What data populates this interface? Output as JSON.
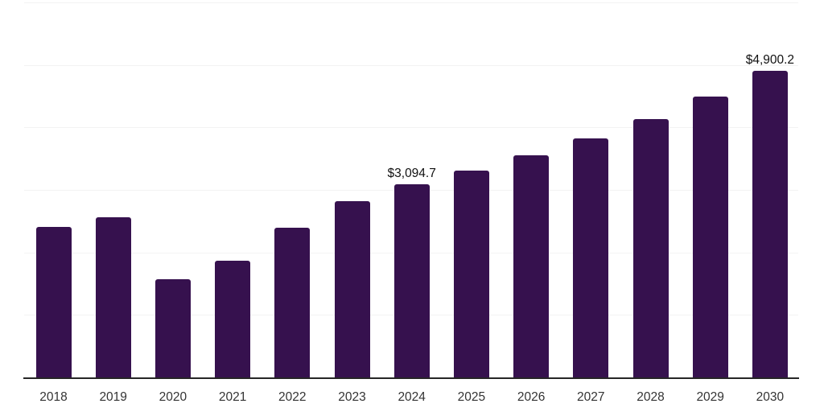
{
  "chart_data": {
    "type": "bar",
    "title": "",
    "xlabel": "",
    "ylabel": "",
    "categories": [
      "2018",
      "2019",
      "2020",
      "2021",
      "2022",
      "2023",
      "2024",
      "2025",
      "2026",
      "2027",
      "2028",
      "2029",
      "2030"
    ],
    "values": [
      2410,
      2565,
      1565,
      1870,
      2395,
      2815,
      3094.7,
      3310,
      3560,
      3830,
      4130,
      4490,
      4900.2
    ],
    "value_labels": [
      {
        "index": 6,
        "text": "$3,094.7"
      },
      {
        "index": 12,
        "text": "$4,900.2"
      }
    ],
    "ylim": [
      0,
      6000
    ],
    "grid_interval": 1000,
    "grid": true,
    "legend": false,
    "y_axis_labels_visible": false,
    "colors": {
      "bar": "#36114E",
      "axis_line": "#262626",
      "gridline": "#f3f3f3",
      "tick_label": "#333333",
      "value_label": "#111111",
      "background": "#ffffff"
    }
  }
}
